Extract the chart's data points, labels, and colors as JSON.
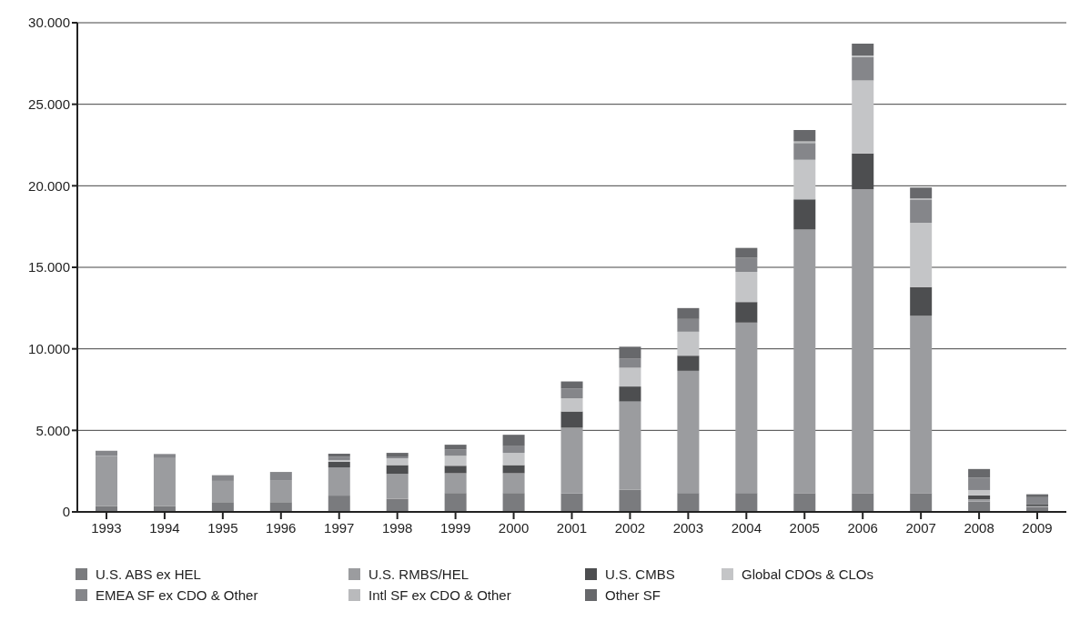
{
  "chart_data": {
    "type": "bar",
    "stacked": true,
    "categories": [
      "1993",
      "1994",
      "1995",
      "1996",
      "1997",
      "1998",
      "1999",
      "2000",
      "2001",
      "2002",
      "2003",
      "2004",
      "2005",
      "2006",
      "2007",
      "2008",
      "2009"
    ],
    "series": [
      {
        "name": "U.S. ABS ex HEL",
        "color": "#7a7b7e",
        "values": [
          350,
          350,
          600,
          600,
          1000,
          800,
          1160,
          1160,
          1130,
          1350,
          1160,
          1160,
          1150,
          1150,
          1150,
          640,
          300
        ]
      },
      {
        "name": "U.S. RMBS/HEL",
        "color": "#9b9c9f",
        "values": [
          3100,
          2950,
          1300,
          1350,
          1730,
          1530,
          1210,
          1210,
          4030,
          5420,
          7490,
          10450,
          16170,
          18630,
          10890,
          130,
          50
        ]
      },
      {
        "name": "U.S. CMBS",
        "color": "#4d4e50",
        "values": [
          0,
          0,
          0,
          0,
          340,
          540,
          460,
          500,
          1000,
          920,
          930,
          1260,
          1850,
          2200,
          1750,
          240,
          100
        ]
      },
      {
        "name": "Global CDOs & CLOs",
        "color": "#c4c5c7",
        "values": [
          0,
          0,
          0,
          0,
          110,
          420,
          610,
          750,
          810,
          1150,
          1470,
          1850,
          2420,
          4480,
          3940,
          330,
          null
        ]
      },
      {
        "name": "EMEA SF ex CDO & Other",
        "color": "#85868a",
        "values": [
          300,
          250,
          350,
          500,
          190,
          110,
          400,
          410,
          600,
          550,
          780,
          860,
          1030,
          1430,
          1400,
          760,
          450
        ]
      },
      {
        "name": "Intl SF ex CDO & Other",
        "color": "#b9babc",
        "values": [
          0,
          0,
          0,
          0,
          0,
          0,
          0,
          0,
          0,
          0,
          0,
          0,
          100,
          100,
          100,
          0,
          0
        ]
      },
      {
        "name": "Other SF",
        "color": "#67686b",
        "values": [
          0,
          0,
          0,
          0,
          200,
          220,
          280,
          700,
          430,
          740,
          670,
          610,
          700,
          730,
          660,
          530,
          180
        ]
      }
    ],
    "ylim": [
      0,
      30000
    ],
    "yticks": [
      0,
      {
        "value": 5000,
        "label": "5.000"
      },
      {
        "value": 10000,
        "label": "10.000"
      },
      {
        "value": 15000,
        "label": "15.000"
      },
      {
        "value": 20000,
        "label": "20.000"
      },
      {
        "value": 25000,
        "label": "25.000"
      },
      {
        "value": 30000,
        "label": "30.000"
      }
    ],
    "grid": "y",
    "legend": "bottom"
  }
}
